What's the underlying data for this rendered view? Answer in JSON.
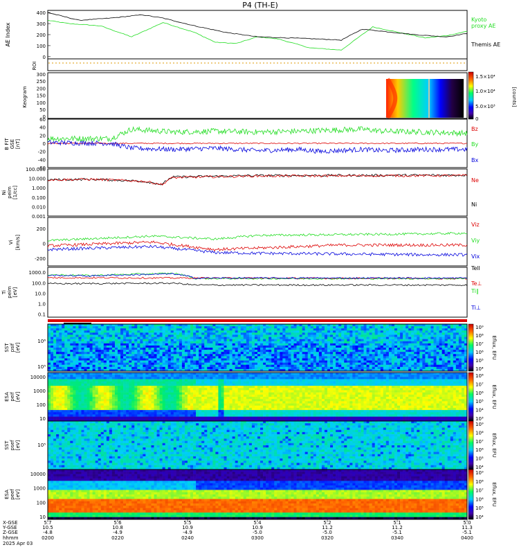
{
  "title": "P4 (TH-E)",
  "colors": {
    "black": "#000000",
    "green": "#22dd22",
    "red": "#dd0000",
    "blue": "#0000dd",
    "orange": "#dd9900",
    "white": "#ffffff"
  },
  "ae_panel": {
    "ylabel": "AE Index",
    "ticks": [
      "400",
      "300",
      "200",
      "100",
      "0"
    ],
    "legend_kyoto": "Kyoto proxy AE",
    "legend_kyoto_l1": "Kyoto",
    "legend_kyoto_l2": "proxy AE",
    "legend_themis": "Themis AE"
  },
  "roi_panel": {
    "ylabel": "ROI"
  },
  "keogram_panel": {
    "ylabel": "Keogram",
    "ticks": [
      "300",
      "250",
      "200",
      "150",
      "100",
      "50",
      "0"
    ],
    "cbar_ticks": [
      "1.5×10⁴",
      "1.0×10⁴",
      "5.0×10³",
      "0"
    ],
    "cbar_label": "[counts]"
  },
  "bfield_panel": {
    "ylabel": "B FIT",
    "ylabel2": "GSE",
    "ylabel3": "[nT]",
    "ticks": [
      "60",
      "40",
      "20",
      "0",
      "-20",
      "-40",
      "-60"
    ],
    "legend": [
      "Bz",
      "By",
      "Bx"
    ]
  },
  "density_panel": {
    "ylabel": "Ni",
    "ylabel2": "peim",
    "ylabel3": "[1/cc]",
    "ticks": [
      "100.000",
      "10.000",
      "1.000",
      "0.100",
      "0.010",
      "0.001"
    ],
    "legend": [
      "Ne",
      "Ni"
    ]
  },
  "velocity_panel": {
    "ylabel": "Vi",
    "ylabel2": "[km/s]",
    "ticks": [
      "200",
      "0",
      "-200"
    ],
    "legend": [
      "Viz",
      "Viy",
      "Vix"
    ]
  },
  "temp_panel": {
    "ylabel": "Ti",
    "ylabel2": "peim",
    "ylabel3": "[eV]",
    "ticks": [
      "1000.0",
      "100.0",
      "10.0",
      "1.0",
      "0.1"
    ],
    "legend": [
      "Tell",
      "Te⊥",
      "Ti∥",
      "Ti⊥"
    ]
  },
  "sst_ion_panel": {
    "ylabel": "SST",
    "ylabel2": "psif",
    "ylabel3": "[eV]",
    "ticks": [
      "10⁶",
      "10⁵"
    ],
    "cbar_ticks": [
      "10⁹",
      "10⁸",
      "10⁷",
      "10⁶",
      "10⁵",
      "10⁴"
    ],
    "cbar_label": "Eflux, EFU"
  },
  "esa_ion_panel": {
    "ylabel": "ESA",
    "ylabel2": "peif",
    "ylabel3": "[eV]",
    "ticks": [
      "10000",
      "1000",
      "100",
      "10"
    ],
    "cbar_ticks": [
      "10⁸",
      "10⁷",
      "10⁶",
      "10⁵",
      "10⁴",
      "10³"
    ],
    "cbar_label": "Eflux, EFU"
  },
  "sst_ele_panel": {
    "ylabel": "SST",
    "ylabel2": "psef",
    "ylabel3": "[eV]",
    "ticks": [
      "10⁵"
    ],
    "cbar_ticks": [
      "10⁹",
      "10⁸",
      "10⁷",
      "10⁶",
      "10⁵",
      "10⁴"
    ],
    "cbar_label": "Eflux, EFU"
  },
  "esa_ele_panel": {
    "ylabel": "ESA",
    "ylabel2": "peef",
    "ylabel3": "[eV]",
    "ticks": [
      "10000",
      "1000",
      "100",
      "10"
    ],
    "cbar_ticks": [
      "10⁹",
      "10⁸",
      "10⁷",
      "10⁶",
      "10⁵",
      "10⁴"
    ],
    "cbar_label": "Eflux, EFU"
  },
  "xaxis": {
    "row_labels": [
      "X-GSE",
      "Y-GSE",
      "Z-GSE",
      "hhmm",
      "2025 Apr 03"
    ],
    "columns": [
      {
        "x": "5.7",
        "y": "10.5",
        "z": "-4.8",
        "t": "0200"
      },
      {
        "x": "5.6",
        "y": "10.8",
        "z": "-4.9",
        "t": "0220"
      },
      {
        "x": "5.5",
        "y": "10.9",
        "z": "-4.9",
        "t": "0240"
      },
      {
        "x": "5.4",
        "y": "10.9",
        "z": "-5.0",
        "t": "0300"
      },
      {
        "x": "5.2",
        "y": "11.2",
        "z": "-5.0",
        "t": "0320"
      },
      {
        "x": "5.1",
        "y": "11.2",
        "z": "-5.1",
        "t": "0340"
      },
      {
        "x": "5.0",
        "y": "11.3",
        "z": "-5.1",
        "t": "0400"
      }
    ]
  },
  "chart_data": [
    {
      "type": "line",
      "name": "AE index",
      "x_unit": "hours UT",
      "ylim": [
        -20,
        420
      ],
      "series": [
        {
          "name": "Kyoto proxy AE",
          "color": "green",
          "x": [
            2.0,
            2.1,
            2.25,
            2.4,
            2.55,
            2.7,
            2.8,
            2.9,
            3.0,
            3.1,
            3.25,
            3.4,
            3.55,
            3.65,
            3.8,
            3.9,
            4.0
          ],
          "y": [
            330,
            300,
            280,
            180,
            310,
            220,
            130,
            120,
            180,
            160,
            80,
            60,
            270,
            230,
            170,
            190,
            230
          ]
        },
        {
          "name": "Themis AE",
          "color": "black",
          "x": [
            2.0,
            2.15,
            2.3,
            2.45,
            2.55,
            2.7,
            2.85,
            3.0,
            3.15,
            3.3,
            3.4,
            3.5,
            3.6,
            3.75,
            3.9,
            4.0
          ],
          "y": [
            400,
            330,
            350,
            380,
            350,
            280,
            220,
            180,
            170,
            160,
            150,
            250,
            230,
            200,
            180,
            210
          ]
        }
      ]
    },
    {
      "type": "line",
      "name": "B FIT GSE",
      "ylim": [
        -60,
        60
      ],
      "series": [
        {
          "name": "Bz",
          "color": "red",
          "x": [
            2.0,
            4.0
          ],
          "y": [
            0,
            0
          ]
        },
        {
          "name": "By",
          "color": "green",
          "x": [
            2.0,
            2.3,
            2.4,
            2.6,
            2.8,
            3.0,
            3.2,
            3.3,
            3.5,
            3.6,
            3.8,
            4.0
          ],
          "y": [
            12,
            12,
            35,
            28,
            30,
            28,
            30,
            32,
            35,
            30,
            28,
            25
          ]
        },
        {
          "name": "Bx",
          "color": "blue",
          "x": [
            2.0,
            2.3,
            2.4,
            2.6,
            2.8,
            3.0,
            3.2,
            3.3,
            3.5,
            3.6,
            3.8,
            4.0
          ],
          "y": [
            2,
            0,
            -12,
            -15,
            -12,
            -18,
            -15,
            -20,
            -15,
            -18,
            -15,
            -15
          ]
        }
      ]
    },
    {
      "type": "line",
      "name": "Density",
      "scale": "log",
      "ylim": [
        0.001,
        100
      ],
      "series": [
        {
          "name": "Ne",
          "color": "red",
          "x": [
            2.0,
            2.2,
            2.45,
            2.55,
            2.6,
            3.0,
            4.0
          ],
          "y": [
            7,
            8,
            5,
            2,
            12,
            18,
            20
          ]
        },
        {
          "name": "Ni",
          "color": "black",
          "x": [
            2.0,
            2.2,
            2.45,
            2.55,
            2.6,
            3.0,
            4.0
          ],
          "y": [
            7,
            8,
            5,
            2,
            14,
            20,
            22
          ]
        }
      ]
    },
    {
      "type": "line",
      "name": "Velocity",
      "ylim": [
        -300,
        350
      ],
      "series": [
        {
          "name": "Viz",
          "color": "red",
          "x": [
            2.0,
            2.5,
            2.8,
            3.0,
            3.4,
            3.8,
            4.0
          ],
          "y": [
            -30,
            20,
            -80,
            -60,
            -20,
            -20,
            -20
          ]
        },
        {
          "name": "Viy",
          "color": "green",
          "x": [
            2.0,
            2.5,
            2.8,
            3.0,
            3.4,
            3.8,
            4.0
          ],
          "y": [
            40,
            100,
            60,
            110,
            120,
            130,
            140
          ]
        },
        {
          "name": "Vix",
          "color": "blue",
          "x": [
            2.0,
            2.5,
            2.8,
            3.0,
            3.4,
            3.8,
            4.0
          ],
          "y": [
            -80,
            -40,
            -120,
            -130,
            -140,
            -150,
            -150
          ]
        }
      ]
    },
    {
      "type": "line",
      "name": "Temperature",
      "scale": "log",
      "ylim": [
        0.05,
        3000
      ],
      "series": [
        {
          "name": "Tell",
          "color": "black",
          "x": [
            2.0,
            2.6,
            2.7,
            4.0
          ],
          "y": [
            80,
            90,
            60,
            60
          ]
        },
        {
          "name": "Te⊥",
          "color": "red",
          "x": [
            2.0,
            4.0
          ],
          "y": [
            300,
            250
          ]
        },
        {
          "name": "Ti∥",
          "color": "green",
          "x": [
            2.0,
            2.2,
            2.6,
            2.7,
            4.0
          ],
          "y": [
            600,
            500,
            800,
            250,
            250
          ]
        },
        {
          "name": "Ti⊥",
          "color": "blue",
          "x": [
            2.0,
            2.2,
            2.6,
            2.7,
            4.0
          ],
          "y": [
            500,
            450,
            700,
            280,
            280
          ]
        }
      ]
    },
    {
      "type": "heatmap",
      "name": "spectrograms",
      "panels": [
        "Keogram",
        "SST psif",
        "ESA peif",
        "SST psef",
        "ESA peef"
      ]
    }
  ]
}
